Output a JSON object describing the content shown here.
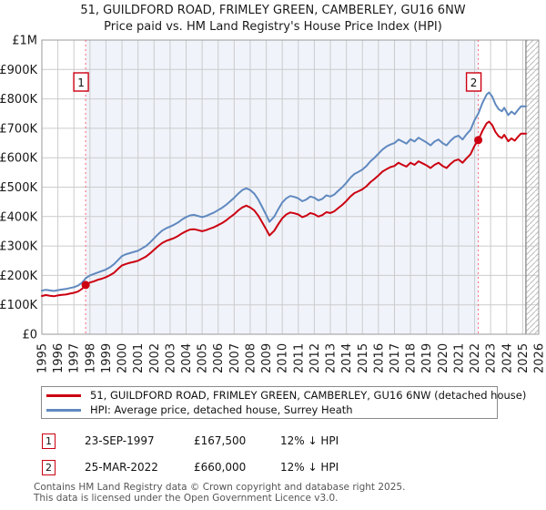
{
  "title": {
    "line1": "51, GUILDFORD ROAD, FRIMLEY GREEN, CAMBERLEY, GU16 6NW",
    "line2": "Price paid vs. HM Land Registry's House Price Index (HPI)"
  },
  "chart_data": {
    "type": "line",
    "xlim": [
      1995,
      2026
    ],
    "ylim": [
      0,
      1000000
    ],
    "grid": true,
    "x_ticks": [
      1995,
      1996,
      1997,
      1998,
      1999,
      2000,
      2001,
      2002,
      2003,
      2004,
      2005,
      2006,
      2007,
      2008,
      2009,
      2010,
      2011,
      2012,
      2013,
      2014,
      2015,
      2016,
      2017,
      2018,
      2019,
      2020,
      2021,
      2022,
      2023,
      2024,
      2025,
      2026
    ],
    "y_ticks": [
      {
        "value": 0,
        "label": "£0"
      },
      {
        "value": 100,
        "label": "£100K"
      },
      {
        "value": 200,
        "label": "£200K"
      },
      {
        "value": 300,
        "label": "£300K"
      },
      {
        "value": 400,
        "label": "£400K"
      },
      {
        "value": 500,
        "label": "£500K"
      },
      {
        "value": 600,
        "label": "£600K"
      },
      {
        "value": 700,
        "label": "£700K"
      },
      {
        "value": 800,
        "label": "£800K"
      },
      {
        "value": 900,
        "label": "£900K"
      },
      {
        "value": 1000,
        "label": "£1M"
      }
    ],
    "y_unit": "thousands of £",
    "shade_region": [
      1997.73,
      2022.23
    ],
    "hatch_start": 2025.2,
    "colors": {
      "red": "#cc0011",
      "blue": "#6089bf",
      "shade": "#f0f3fa",
      "grid": "#cccccc",
      "frame": "#9a9a9a",
      "dashed": "#ff6677",
      "hatch": "#bbbbbb",
      "hatch_edge": "#888888"
    },
    "sales": [
      {
        "label": "1",
        "date": "23-SEP-1997",
        "year": 1997.73,
        "price_k": 167.5,
        "note": "12% ↓ HPI"
      },
      {
        "label": "2",
        "date": "25-MAR-2022",
        "year": 2022.23,
        "price_k": 660,
        "note": "12% ↓ HPI"
      }
    ],
    "series": [
      {
        "name": "HPI: Average price, detached house, Surrey Heath",
        "color": "#6089bf",
        "points": [
          [
            1995,
            148
          ],
          [
            1995.25,
            151
          ],
          [
            1995.5,
            149
          ],
          [
            1995.75,
            147
          ],
          [
            1996,
            150
          ],
          [
            1996.25,
            152
          ],
          [
            1996.5,
            154
          ],
          [
            1996.75,
            157
          ],
          [
            1997,
            160
          ],
          [
            1997.25,
            165
          ],
          [
            1997.5,
            175
          ],
          [
            1997.73,
            190
          ],
          [
            1998,
            200
          ],
          [
            1998.25,
            205
          ],
          [
            1998.5,
            210
          ],
          [
            1998.75,
            215
          ],
          [
            1999,
            220
          ],
          [
            1999.25,
            228
          ],
          [
            1999.5,
            238
          ],
          [
            1999.75,
            252
          ],
          [
            2000,
            266
          ],
          [
            2000.25,
            272
          ],
          [
            2000.5,
            276
          ],
          [
            2000.75,
            280
          ],
          [
            2001,
            284
          ],
          [
            2001.25,
            292
          ],
          [
            2001.5,
            300
          ],
          [
            2001.75,
            312
          ],
          [
            2002,
            326
          ],
          [
            2002.25,
            340
          ],
          [
            2002.5,
            352
          ],
          [
            2002.75,
            360
          ],
          [
            2003,
            366
          ],
          [
            2003.25,
            372
          ],
          [
            2003.5,
            380
          ],
          [
            2003.75,
            390
          ],
          [
            2004,
            398
          ],
          [
            2004.25,
            404
          ],
          [
            2004.5,
            406
          ],
          [
            2004.75,
            402
          ],
          [
            2005,
            398
          ],
          [
            2005.25,
            402
          ],
          [
            2005.5,
            408
          ],
          [
            2005.75,
            414
          ],
          [
            2006,
            422
          ],
          [
            2006.25,
            430
          ],
          [
            2006.5,
            440
          ],
          [
            2006.75,
            452
          ],
          [
            2007,
            464
          ],
          [
            2007.25,
            478
          ],
          [
            2007.5,
            490
          ],
          [
            2007.75,
            496
          ],
          [
            2008,
            490
          ],
          [
            2008.25,
            478
          ],
          [
            2008.5,
            458
          ],
          [
            2008.75,
            432
          ],
          [
            2009,
            405
          ],
          [
            2009.2,
            382
          ],
          [
            2009.5,
            400
          ],
          [
            2009.75,
            425
          ],
          [
            2010,
            448
          ],
          [
            2010.25,
            462
          ],
          [
            2010.5,
            470
          ],
          [
            2010.75,
            467
          ],
          [
            2011,
            462
          ],
          [
            2011.25,
            452
          ],
          [
            2011.5,
            458
          ],
          [
            2011.75,
            468
          ],
          [
            2012,
            464
          ],
          [
            2012.25,
            455
          ],
          [
            2012.5,
            460
          ],
          [
            2012.75,
            472
          ],
          [
            2013,
            468
          ],
          [
            2013.25,
            475
          ],
          [
            2013.5,
            488
          ],
          [
            2013.75,
            500
          ],
          [
            2014,
            515
          ],
          [
            2014.25,
            532
          ],
          [
            2014.5,
            545
          ],
          [
            2014.75,
            552
          ],
          [
            2015,
            560
          ],
          [
            2015.25,
            572
          ],
          [
            2015.5,
            588
          ],
          [
            2015.75,
            600
          ],
          [
            2016,
            614
          ],
          [
            2016.25,
            628
          ],
          [
            2016.5,
            638
          ],
          [
            2016.75,
            645
          ],
          [
            2017,
            650
          ],
          [
            2017.25,
            662
          ],
          [
            2017.5,
            655
          ],
          [
            2017.75,
            648
          ],
          [
            2018,
            663
          ],
          [
            2018.25,
            655
          ],
          [
            2018.5,
            668
          ],
          [
            2018.75,
            660
          ],
          [
            2019,
            652
          ],
          [
            2019.25,
            642
          ],
          [
            2019.5,
            655
          ],
          [
            2019.75,
            662
          ],
          [
            2020,
            650
          ],
          [
            2020.25,
            642
          ],
          [
            2020.5,
            658
          ],
          [
            2020.75,
            670
          ],
          [
            2021,
            675
          ],
          [
            2021.25,
            662
          ],
          [
            2021.5,
            680
          ],
          [
            2021.75,
            695
          ],
          [
            2022,
            728
          ],
          [
            2022.23,
            750
          ],
          [
            2022.5,
            788
          ],
          [
            2022.75,
            815
          ],
          [
            2022.9,
            822
          ],
          [
            2023.1,
            808
          ],
          [
            2023.3,
            782
          ],
          [
            2023.5,
            765
          ],
          [
            2023.7,
            758
          ],
          [
            2023.85,
            770
          ],
          [
            2024.1,
            745
          ],
          [
            2024.3,
            757
          ],
          [
            2024.5,
            748
          ],
          [
            2024.7,
            762
          ],
          [
            2024.9,
            775
          ],
          [
            2025.2,
            775
          ]
        ]
      },
      {
        "name": "51, GUILDFORD ROAD, FRIMLEY GREEN, CAMBERLEY, GU16 6NW (detached house)",
        "color": "#cc0011",
        "points": [
          [
            1995,
            130
          ],
          [
            1995.25,
            133
          ],
          [
            1995.5,
            131
          ],
          [
            1995.75,
            129
          ],
          [
            1996,
            132
          ],
          [
            1996.25,
            134
          ],
          [
            1996.5,
            135
          ],
          [
            1996.75,
            138
          ],
          [
            1997,
            141
          ],
          [
            1997.25,
            145
          ],
          [
            1997.5,
            154
          ],
          [
            1997.73,
            167.5
          ],
          [
            1998,
            176
          ],
          [
            1998.25,
            180
          ],
          [
            1998.5,
            185
          ],
          [
            1998.75,
            189
          ],
          [
            1999,
            194
          ],
          [
            1999.25,
            201
          ],
          [
            1999.5,
            209
          ],
          [
            1999.75,
            222
          ],
          [
            2000,
            234
          ],
          [
            2000.25,
            239
          ],
          [
            2000.5,
            243
          ],
          [
            2000.75,
            246
          ],
          [
            2001,
            250
          ],
          [
            2001.25,
            257
          ],
          [
            2001.5,
            264
          ],
          [
            2001.75,
            275
          ],
          [
            2002,
            287
          ],
          [
            2002.25,
            299
          ],
          [
            2002.5,
            310
          ],
          [
            2002.75,
            317
          ],
          [
            2003,
            322
          ],
          [
            2003.25,
            327
          ],
          [
            2003.5,
            334
          ],
          [
            2003.75,
            343
          ],
          [
            2004,
            350
          ],
          [
            2004.25,
            356
          ],
          [
            2004.5,
            357
          ],
          [
            2004.75,
            354
          ],
          [
            2005,
            350
          ],
          [
            2005.25,
            354
          ],
          [
            2005.5,
            359
          ],
          [
            2005.75,
            364
          ],
          [
            2006,
            371
          ],
          [
            2006.25,
            378
          ],
          [
            2006.5,
            387
          ],
          [
            2006.75,
            398
          ],
          [
            2007,
            408
          ],
          [
            2007.25,
            421
          ],
          [
            2007.5,
            431
          ],
          [
            2007.75,
            437
          ],
          [
            2008,
            431
          ],
          [
            2008.25,
            421
          ],
          [
            2008.5,
            403
          ],
          [
            2008.75,
            380
          ],
          [
            2009,
            356
          ],
          [
            2009.2,
            336
          ],
          [
            2009.5,
            352
          ],
          [
            2009.75,
            374
          ],
          [
            2010,
            394
          ],
          [
            2010.25,
            407
          ],
          [
            2010.5,
            414
          ],
          [
            2010.75,
            411
          ],
          [
            2011,
            407
          ],
          [
            2011.25,
            398
          ],
          [
            2011.5,
            403
          ],
          [
            2011.75,
            412
          ],
          [
            2012,
            408
          ],
          [
            2012.25,
            400
          ],
          [
            2012.5,
            405
          ],
          [
            2012.75,
            415
          ],
          [
            2013,
            412
          ],
          [
            2013.25,
            418
          ],
          [
            2013.5,
            429
          ],
          [
            2013.75,
            440
          ],
          [
            2014,
            453
          ],
          [
            2014.25,
            468
          ],
          [
            2014.5,
            480
          ],
          [
            2014.75,
            486
          ],
          [
            2015,
            493
          ],
          [
            2015.25,
            503
          ],
          [
            2015.5,
            517
          ],
          [
            2015.75,
            528
          ],
          [
            2016,
            540
          ],
          [
            2016.25,
            553
          ],
          [
            2016.5,
            561
          ],
          [
            2016.75,
            568
          ],
          [
            2017,
            572
          ],
          [
            2017.25,
            583
          ],
          [
            2017.5,
            576
          ],
          [
            2017.75,
            570
          ],
          [
            2018,
            583
          ],
          [
            2018.25,
            576
          ],
          [
            2018.5,
            588
          ],
          [
            2018.75,
            581
          ],
          [
            2019,
            574
          ],
          [
            2019.25,
            565
          ],
          [
            2019.5,
            576
          ],
          [
            2019.75,
            583
          ],
          [
            2020,
            572
          ],
          [
            2020.25,
            565
          ],
          [
            2020.5,
            579
          ],
          [
            2020.75,
            590
          ],
          [
            2021,
            594
          ],
          [
            2021.25,
            583
          ],
          [
            2021.5,
            598
          ],
          [
            2021.75,
            612
          ],
          [
            2022,
            641
          ],
          [
            2022.23,
            660
          ],
          [
            2022.5,
            693
          ],
          [
            2022.75,
            717
          ],
          [
            2022.9,
            723
          ],
          [
            2023.1,
            711
          ],
          [
            2023.3,
            688
          ],
          [
            2023.5,
            673
          ],
          [
            2023.7,
            667
          ],
          [
            2023.85,
            678
          ],
          [
            2024.1,
            656
          ],
          [
            2024.3,
            666
          ],
          [
            2024.5,
            658
          ],
          [
            2024.7,
            671
          ],
          [
            2024.9,
            682
          ],
          [
            2025.2,
            682
          ]
        ]
      }
    ]
  },
  "legend": {
    "items": [
      {
        "label": "51, GUILDFORD ROAD, FRIMLEY GREEN, CAMBERLEY, GU16 6NW (detached house)",
        "color": "#cc0011"
      },
      {
        "label": "HPI: Average price, detached house, Surrey Heath",
        "color": "#6089bf"
      }
    ]
  },
  "transactions": [
    {
      "num": "1",
      "date": "23-SEP-1997",
      "price": "£167,500",
      "hpi": "12% ↓ HPI"
    },
    {
      "num": "2",
      "date": "25-MAR-2022",
      "price": "£660,000",
      "hpi": "12% ↓ HPI"
    }
  ],
  "footer": {
    "line1": "Contains HM Land Registry data © Crown copyright and database right 2025.",
    "line2": "This data is licensed under the Open Government Licence v3.0."
  }
}
